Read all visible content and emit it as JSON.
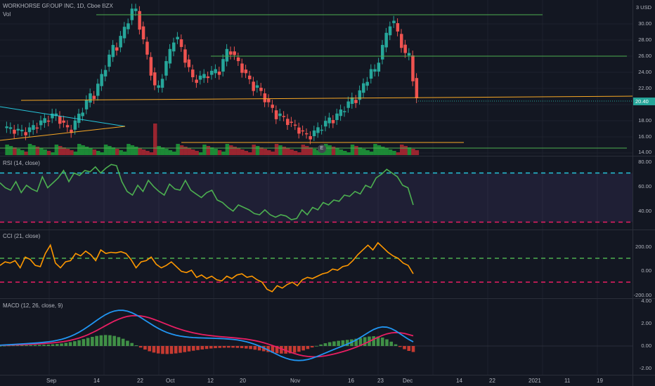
{
  "header": {
    "title": "WORKHORSE GROUP INC, 1D, Cboe BZX",
    "vol_label": "Vol",
    "currency": "USD",
    "currency_prefix": "3"
  },
  "colors": {
    "up": "#26a69a",
    "down": "#ef5350",
    "vol_up": "#1e9e3a",
    "vol_down": "#b22833",
    "rsi_line": "#4caf50",
    "rsi_band": "#7e57c2",
    "cci_line": "#ff9800",
    "macd_line": "#2196f3",
    "signal_line": "#e91e63",
    "hist_up": "#4caf50",
    "hist_down": "#f44336"
  },
  "price_axis": [
    "30.00",
    "28.00",
    "26.00",
    "24.00",
    "22.00",
    "20.00",
    "18.00",
    "16.00",
    "14.00"
  ],
  "last_price": "20.40",
  "earnings_badge": "E",
  "rsi": {
    "title": "RSI (14, close)",
    "axis": [
      "80.00",
      "60.00",
      "40.00"
    ],
    "values": [
      62,
      58,
      56,
      63,
      54,
      60,
      57,
      55,
      67,
      58,
      62,
      66,
      72,
      63,
      70,
      68,
      72,
      71,
      75,
      70,
      74,
      77,
      76,
      63,
      55,
      52,
      60,
      55,
      64,
      59,
      55,
      52,
      61,
      57,
      56,
      64,
      56,
      53,
      50,
      54,
      56,
      48,
      46,
      42,
      39,
      44,
      42,
      40,
      37,
      36,
      40,
      36,
      34,
      36,
      35,
      32,
      33,
      40,
      36,
      42,
      40,
      46,
      44,
      48,
      47,
      52,
      51,
      55,
      53,
      60,
      58,
      66,
      69,
      73,
      70,
      67,
      60,
      58,
      44
    ]
  },
  "cci": {
    "title": "CCI (21, close)",
    "axis": [
      "200.00",
      "0.00",
      "-200.00"
    ],
    "values": [
      40,
      70,
      60,
      80,
      20,
      110,
      90,
      40,
      30,
      140,
      210,
      60,
      20,
      70,
      80,
      140,
      120,
      160,
      130,
      80,
      170,
      140,
      150,
      145,
      155,
      140,
      90,
      20,
      70,
      80,
      110,
      50,
      20,
      40,
      70,
      30,
      -10,
      -20,
      0,
      -60,
      -40,
      -70,
      -50,
      -80,
      -90,
      -50,
      -70,
      -40,
      -30,
      -60,
      -50,
      -80,
      -100,
      -160,
      -180,
      -130,
      -150,
      -120,
      -100,
      -130,
      -80,
      -60,
      -70,
      -50,
      -30,
      -20,
      10,
      0,
      30,
      40,
      80,
      130,
      170,
      210,
      170,
      230,
      190,
      150,
      120,
      100,
      60,
      40,
      -30
    ]
  },
  "macd": {
    "title": "MACD (12, 26, close, 9)",
    "axis": [
      "4.00",
      "2.00",
      "0.00",
      "-2.00"
    ]
  },
  "x_axis": [
    "Sep",
    "14",
    "22",
    "Oct",
    "12",
    "20",
    "Nov",
    "16",
    "23",
    "Dec",
    "14",
    "22",
    "2021",
    "11",
    "19"
  ]
}
